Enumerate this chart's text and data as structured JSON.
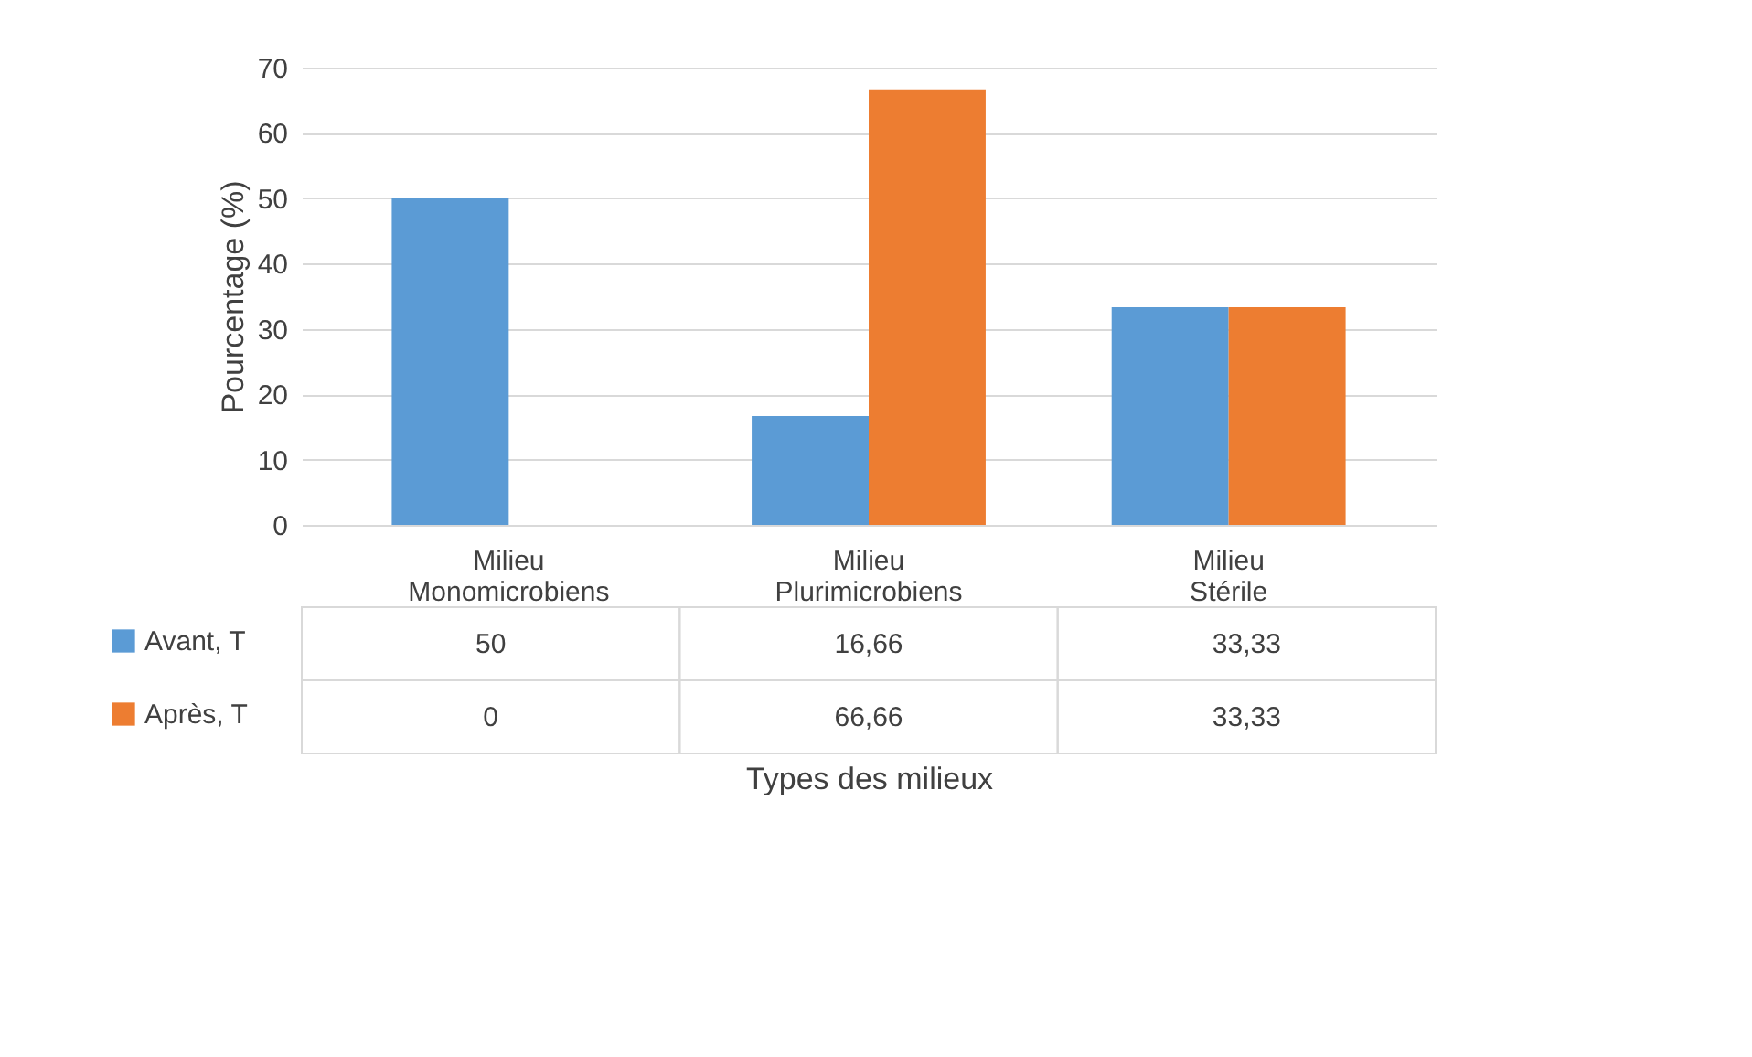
{
  "chart_data": {
    "type": "bar",
    "xlabel": "Types des milieux",
    "ylabel": "Pourcentage (%)",
    "categories": [
      "Milieu Monomicrobiens",
      "Milieu Plurimicrobiens",
      "Milieu Stérile"
    ],
    "series": [
      {
        "name": "Avant, T",
        "color": "#5b9bd5",
        "values": [
          50,
          16.66,
          33.33
        ],
        "value_labels": [
          "50",
          "16,66",
          "33,33"
        ]
      },
      {
        "name": "Après, T",
        "color": "#ed7d31",
        "values": [
          0,
          66.66,
          33.33
        ],
        "value_labels": [
          "0",
          "66,66",
          "33,33"
        ]
      }
    ],
    "ylim": [
      0,
      70
    ],
    "yticks": [
      0,
      10,
      20,
      30,
      40,
      50,
      60,
      70
    ],
    "grid": "y",
    "legend": "bottom"
  }
}
